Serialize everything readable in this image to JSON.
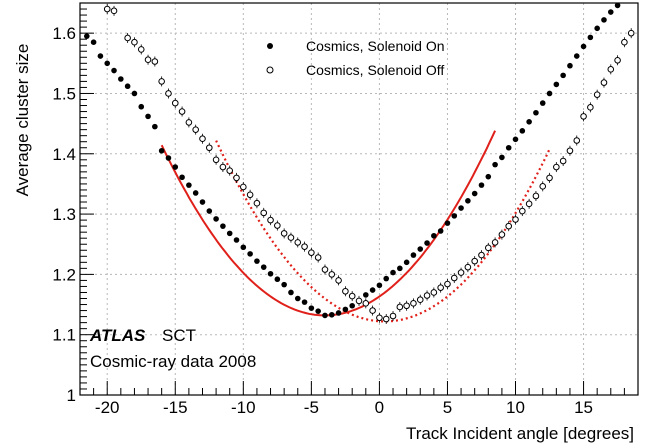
{
  "chart_data": {
    "type": "scatter",
    "xlabel": "Track Incident angle [degrees]",
    "ylabel": "Average cluster size",
    "xlim": [
      -22,
      19
    ],
    "ylim": [
      1.0,
      1.65
    ],
    "x_ticks": [
      -20,
      -15,
      -10,
      -5,
      0,
      5,
      10,
      15
    ],
    "y_ticks": [
      1,
      1.1,
      1.2,
      1.3,
      1.4,
      1.5,
      1.6
    ],
    "grid": true,
    "legend_position": "top-center",
    "annotations": {
      "experiment": "ATLAS",
      "detector": "SCT",
      "dataset": "Cosmic-ray data 2008"
    },
    "series": [
      {
        "name": "Cosmics, Solenoid On",
        "marker": "filled-circle",
        "fit": {
          "type": "quadratic",
          "x_range": [
            -16,
            8.5
          ],
          "vertex_x": -4.0,
          "vertex_y": 1.132,
          "curvature": 0.00196,
          "style": "solid"
        },
        "points": [
          [
            -21.5,
            1.595
          ],
          [
            -21.0,
            1.585
          ],
          [
            -20.5,
            1.562
          ],
          [
            -20.0,
            1.55
          ],
          [
            -19.5,
            1.538
          ],
          [
            -19.0,
            1.524
          ],
          [
            -18.5,
            1.512
          ],
          [
            -18.0,
            1.5
          ],
          [
            -17.5,
            1.478
          ],
          [
            -17.0,
            1.462
          ],
          [
            -16.5,
            1.445
          ],
          [
            -16.0,
            1.405
          ],
          [
            -15.5,
            1.393
          ],
          [
            -15.0,
            1.378
          ],
          [
            -14.5,
            1.361
          ],
          [
            -14.0,
            1.348
          ],
          [
            -13.5,
            1.335
          ],
          [
            -13.0,
            1.32
          ],
          [
            -12.5,
            1.305
          ],
          [
            -12.0,
            1.292
          ],
          [
            -11.5,
            1.28
          ],
          [
            -11.0,
            1.268
          ],
          [
            -10.5,
            1.257
          ],
          [
            -10.0,
            1.245
          ],
          [
            -9.5,
            1.234
          ],
          [
            -9.0,
            1.222
          ],
          [
            -8.5,
            1.212
          ],
          [
            -8.0,
            1.201
          ],
          [
            -7.5,
            1.192
          ],
          [
            -7.0,
            1.183
          ],
          [
            -6.5,
            1.17
          ],
          [
            -6.0,
            1.16
          ],
          [
            -5.5,
            1.154
          ],
          [
            -5.0,
            1.144
          ],
          [
            -4.5,
            1.139
          ],
          [
            -4.0,
            1.132
          ],
          [
            -3.5,
            1.133
          ],
          [
            -3.0,
            1.136
          ],
          [
            -2.5,
            1.142
          ],
          [
            -2.0,
            1.148
          ],
          [
            -1.5,
            1.156
          ],
          [
            -1.0,
            1.166
          ],
          [
            -0.5,
            1.174
          ],
          [
            0.0,
            1.182
          ],
          [
            0.5,
            1.193
          ],
          [
            1.0,
            1.203
          ],
          [
            1.5,
            1.21
          ],
          [
            2.0,
            1.22
          ],
          [
            2.5,
            1.232
          ],
          [
            3.0,
            1.242
          ],
          [
            3.5,
            1.252
          ],
          [
            4.0,
            1.264
          ],
          [
            4.5,
            1.272
          ],
          [
            5.0,
            1.285
          ],
          [
            5.5,
            1.297
          ],
          [
            6.0,
            1.31
          ],
          [
            6.5,
            1.322
          ],
          [
            7.0,
            1.334
          ],
          [
            7.5,
            1.348
          ],
          [
            8.0,
            1.362
          ],
          [
            8.5,
            1.382
          ],
          [
            9.0,
            1.394
          ],
          [
            9.5,
            1.41
          ],
          [
            10.0,
            1.424
          ],
          [
            10.5,
            1.438
          ],
          [
            11.0,
            1.453
          ],
          [
            11.5,
            1.468
          ],
          [
            12.0,
            1.484
          ],
          [
            12.5,
            1.5
          ],
          [
            13.0,
            1.515
          ],
          [
            13.5,
            1.53
          ],
          [
            14.0,
            1.546
          ],
          [
            14.5,
            1.562
          ],
          [
            15.0,
            1.578
          ],
          [
            15.5,
            1.593
          ],
          [
            16.0,
            1.608
          ],
          [
            16.5,
            1.622
          ],
          [
            17.0,
            1.635
          ],
          [
            17.5,
            1.646
          ]
        ]
      },
      {
        "name": "Cosmics, Solenoid Off",
        "marker": "open-circle",
        "fit": {
          "type": "quadratic",
          "x_range": [
            -12,
            12.5
          ],
          "vertex_x": 0.4,
          "vertex_y": 1.122,
          "curvature": 0.00195,
          "style": "dotted"
        },
        "points": [
          [
            -20.0,
            1.64
          ],
          [
            -19.5,
            1.637
          ],
          [
            -18.5,
            1.592
          ],
          [
            -18.0,
            1.585
          ],
          [
            -17.5,
            1.573
          ],
          [
            -17.0,
            1.556
          ],
          [
            -16.5,
            1.553
          ],
          [
            -16.0,
            1.52
          ],
          [
            -15.5,
            1.5
          ],
          [
            -15.0,
            1.484
          ],
          [
            -14.5,
            1.47
          ],
          [
            -14.0,
            1.452
          ],
          [
            -13.5,
            1.44
          ],
          [
            -13.0,
            1.425
          ],
          [
            -12.5,
            1.41
          ],
          [
            -12.0,
            1.39
          ],
          [
            -11.5,
            1.378
          ],
          [
            -11.0,
            1.372
          ],
          [
            -10.5,
            1.36
          ],
          [
            -10.0,
            1.345
          ],
          [
            -9.5,
            1.332
          ],
          [
            -9.0,
            1.318
          ],
          [
            -8.5,
            1.302
          ],
          [
            -8.0,
            1.29
          ],
          [
            -7.5,
            1.281
          ],
          [
            -7.0,
            1.268
          ],
          [
            -6.5,
            1.261
          ],
          [
            -6.0,
            1.253
          ],
          [
            -5.5,
            1.246
          ],
          [
            -5.0,
            1.236
          ],
          [
            -4.5,
            1.228
          ],
          [
            -4.0,
            1.208
          ],
          [
            -3.5,
            1.2
          ],
          [
            -3.0,
            1.19
          ],
          [
            -2.5,
            1.172
          ],
          [
            -2.0,
            1.164
          ],
          [
            -1.5,
            1.156
          ],
          [
            -1.0,
            1.152
          ],
          [
            -0.5,
            1.14
          ],
          [
            0.0,
            1.128
          ],
          [
            0.5,
            1.126
          ],
          [
            1.0,
            1.131
          ],
          [
            1.5,
            1.146
          ],
          [
            2.0,
            1.148
          ],
          [
            2.5,
            1.152
          ],
          [
            3.0,
            1.158
          ],
          [
            3.5,
            1.165
          ],
          [
            4.0,
            1.17
          ],
          [
            4.5,
            1.178
          ],
          [
            5.0,
            1.184
          ],
          [
            5.5,
            1.194
          ],
          [
            6.0,
            1.203
          ],
          [
            6.5,
            1.212
          ],
          [
            7.0,
            1.222
          ],
          [
            7.5,
            1.232
          ],
          [
            8.0,
            1.244
          ],
          [
            8.5,
            1.253
          ],
          [
            9.0,
            1.266
          ],
          [
            9.5,
            1.28
          ],
          [
            10.0,
            1.291
          ],
          [
            10.5,
            1.305
          ],
          [
            11.0,
            1.317
          ],
          [
            11.5,
            1.33
          ],
          [
            12.0,
            1.346
          ],
          [
            12.5,
            1.36
          ],
          [
            13.0,
            1.378
          ],
          [
            13.5,
            1.388
          ],
          [
            14.0,
            1.405
          ],
          [
            14.5,
            1.422
          ],
          [
            15.0,
            1.462
          ],
          [
            15.5,
            1.477
          ],
          [
            16.0,
            1.498
          ],
          [
            16.5,
            1.518
          ],
          [
            17.0,
            1.54
          ],
          [
            17.5,
            1.555
          ],
          [
            18.0,
            1.585
          ],
          [
            18.5,
            1.6
          ]
        ]
      }
    ]
  }
}
